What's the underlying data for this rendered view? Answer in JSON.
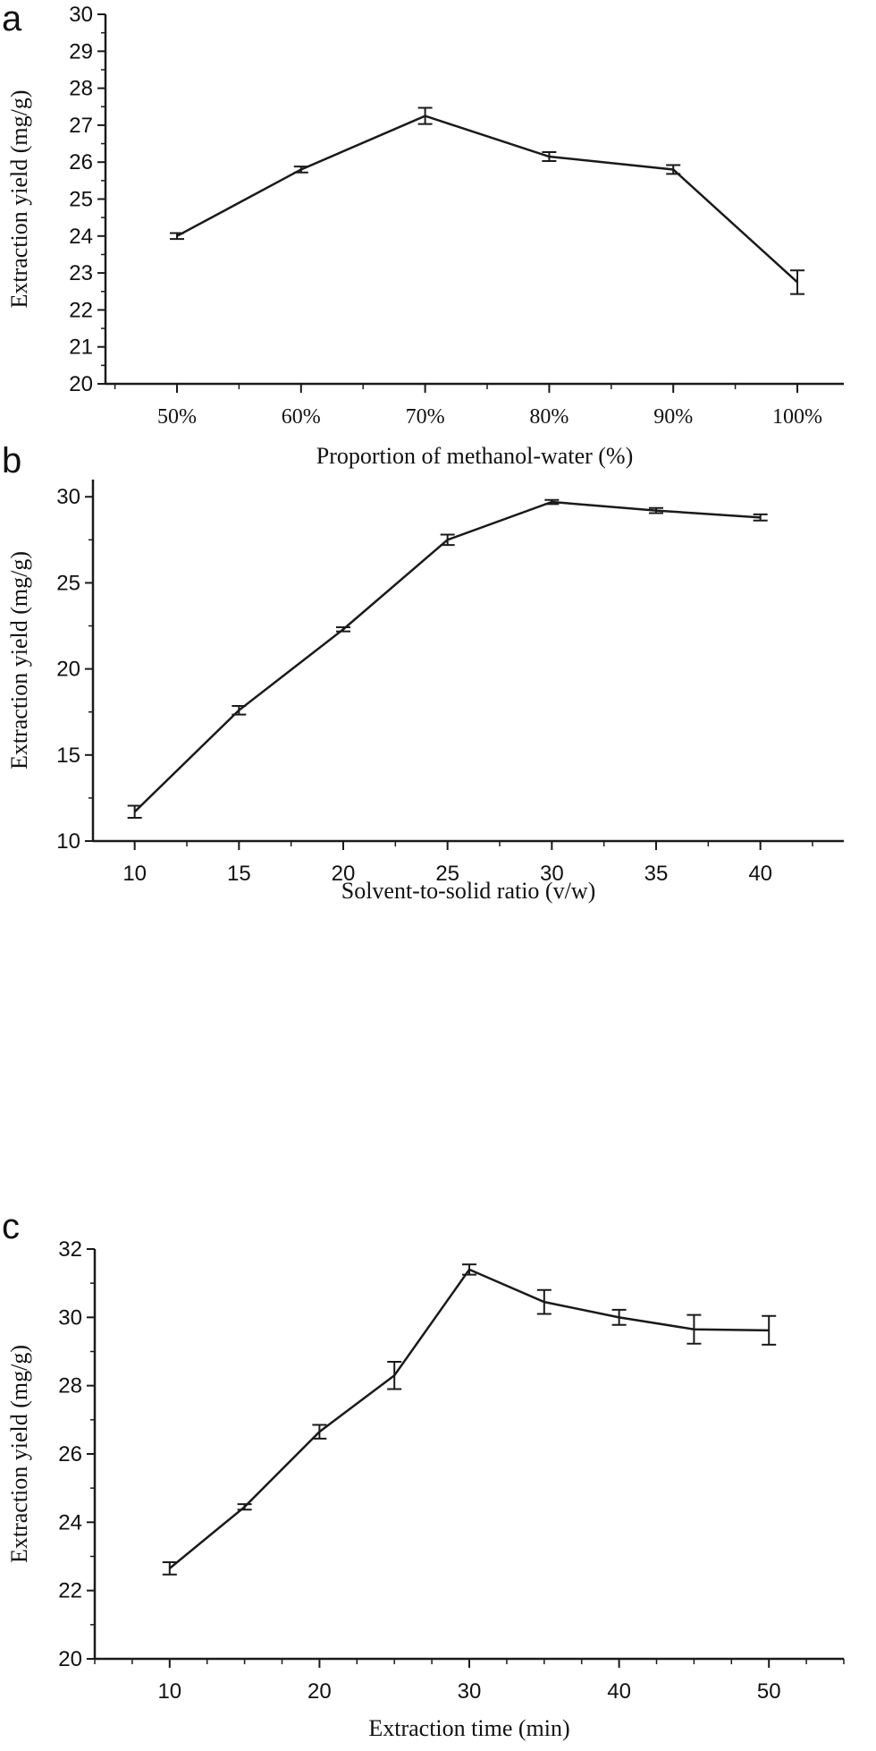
{
  "chart_data": [
    {
      "panel": "a",
      "type": "line",
      "categories": [
        "50%",
        "60%",
        "70%",
        "80%",
        "90%",
        "100%"
      ],
      "series": [
        {
          "values": [
            24.0,
            25.8,
            27.25,
            26.15,
            25.8,
            22.75
          ],
          "errors": [
            0.08,
            0.08,
            0.22,
            0.12,
            0.12,
            0.32
          ]
        }
      ],
      "xlabel": "Proportion of methanol-water (%)",
      "ylabel": "Extraction yield (mg/g)",
      "ylim": [
        20,
        30
      ],
      "yticks": [
        "20",
        "21",
        "22",
        "23",
        "24",
        "25",
        "26",
        "27",
        "28",
        "29",
        "30"
      ],
      "grid": false
    },
    {
      "panel": "b",
      "type": "line",
      "x": [
        10,
        15,
        20,
        25,
        30,
        35,
        40
      ],
      "series": [
        {
          "values": [
            11.7,
            17.6,
            22.3,
            27.5,
            29.7,
            29.2,
            28.8
          ],
          "errors": [
            0.35,
            0.25,
            0.12,
            0.3,
            0.12,
            0.15,
            0.18
          ]
        }
      ],
      "xlabel": "Solvent-to-solid ratio (v/w)",
      "ylabel": "Extraction yield (mg/g)",
      "xlim": [
        8,
        44
      ],
      "ylim": [
        10,
        31
      ],
      "xticks": [
        "10",
        "15",
        "20",
        "25",
        "30",
        "35",
        "40"
      ],
      "yticks": [
        "10",
        "15",
        "20",
        "25",
        "30"
      ],
      "grid": false
    },
    {
      "panel": "c",
      "type": "line",
      "x": [
        10,
        15,
        20,
        25,
        30,
        35,
        40,
        45,
        50
      ],
      "series": [
        {
          "values": [
            22.65,
            24.45,
            26.65,
            28.3,
            31.4,
            30.45,
            30.0,
            29.65,
            29.62
          ],
          "errors": [
            0.18,
            0.08,
            0.2,
            0.4,
            0.15,
            0.35,
            0.22,
            0.42,
            0.42
          ]
        }
      ],
      "xlabel": "Extraction time (min)",
      "ylabel": "Extraction yield (mg/g)",
      "xlim": [
        5,
        55
      ],
      "ylim": [
        20,
        32
      ],
      "xticks": [
        "10",
        "20",
        "30",
        "40",
        "50"
      ],
      "yticks": [
        "20",
        "22",
        "24",
        "26",
        "28",
        "30",
        "32"
      ],
      "grid": false
    }
  ]
}
